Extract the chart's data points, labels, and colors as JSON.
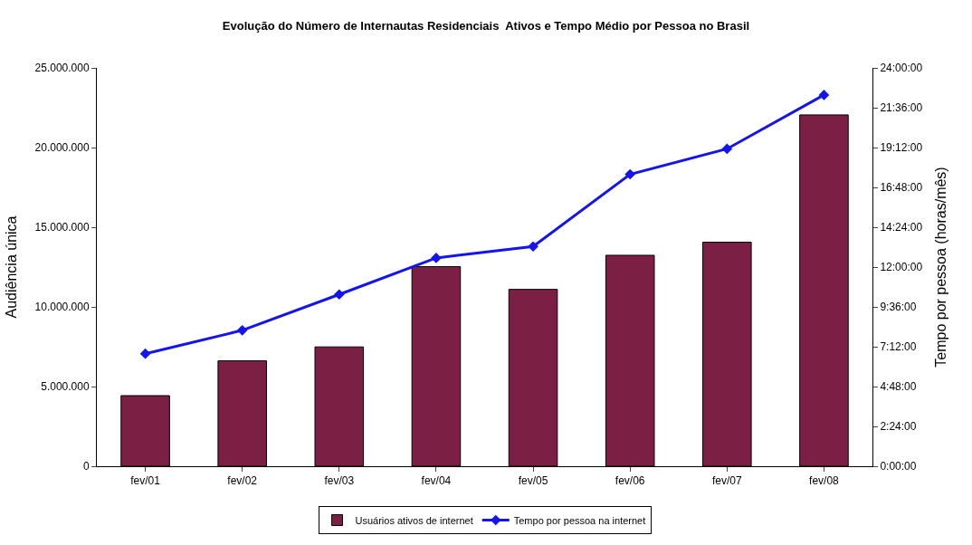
{
  "chart_data": {
    "type": "bar",
    "title": "Evolução do Número de Internautas Residenciais  Ativos e Tempo Médio por Pessoa no Brasil",
    "ylabel": "Audiência única",
    "y2label": "Tempo por pessoa (horas/mês)",
    "categories": [
      "fev/01",
      "fev/02",
      "fev/03",
      "fev/04",
      "fev/05",
      "fev/06",
      "fev/07",
      "fev/08"
    ],
    "series": [
      {
        "name": "Usuários ativos de internet",
        "color": "#7b1f45",
        "values": [
          4430000,
          6620000,
          7490000,
          12530000,
          11100000,
          13240000,
          14060000,
          22050000
        ]
      },
      {
        "name": "Tempo por pessoa na internet",
        "type": "line",
        "axis": "y2",
        "color": "#1414f0",
        "marker": "diamond",
        "values": [
          6.78,
          8.19,
          10.35,
          12.55,
          13.24,
          17.59,
          19.12,
          22.37
        ]
      }
    ],
    "ylim": [
      0,
      25000000
    ],
    "yticks": [
      0,
      {
        "value": 5000000,
        "label": "5.000.000"
      },
      {
        "value": 10000000,
        "label": "10.000.000"
      },
      {
        "value": 15000000,
        "label": "15.000.000"
      },
      {
        "value": 20000000,
        "label": "20.000.000"
      },
      {
        "value": 25000000,
        "label": "25.000.000"
      }
    ],
    "y2lim": [
      0,
      24
    ],
    "y2ticks": [
      {
        "value": 0,
        "label": "0:00:00"
      },
      {
        "value": 2.4,
        "label": "2:24:00"
      },
      {
        "value": 4.8,
        "label": "4:48:00"
      },
      {
        "value": 7.2,
        "label": "7:12:00"
      },
      {
        "value": 9.6,
        "label": "9:36:00"
      },
      {
        "value": 12,
        "label": "12:00:00"
      },
      {
        "value": 14.4,
        "label": "14:24:00"
      },
      {
        "value": 16.8,
        "label": "16:48:00"
      },
      {
        "value": 19.2,
        "label": "19:12:00"
      },
      {
        "value": 21.6,
        "label": "21:36:00"
      },
      {
        "value": 24,
        "label": "24:00:00"
      }
    ],
    "grid": false,
    "legend": "bottom"
  }
}
